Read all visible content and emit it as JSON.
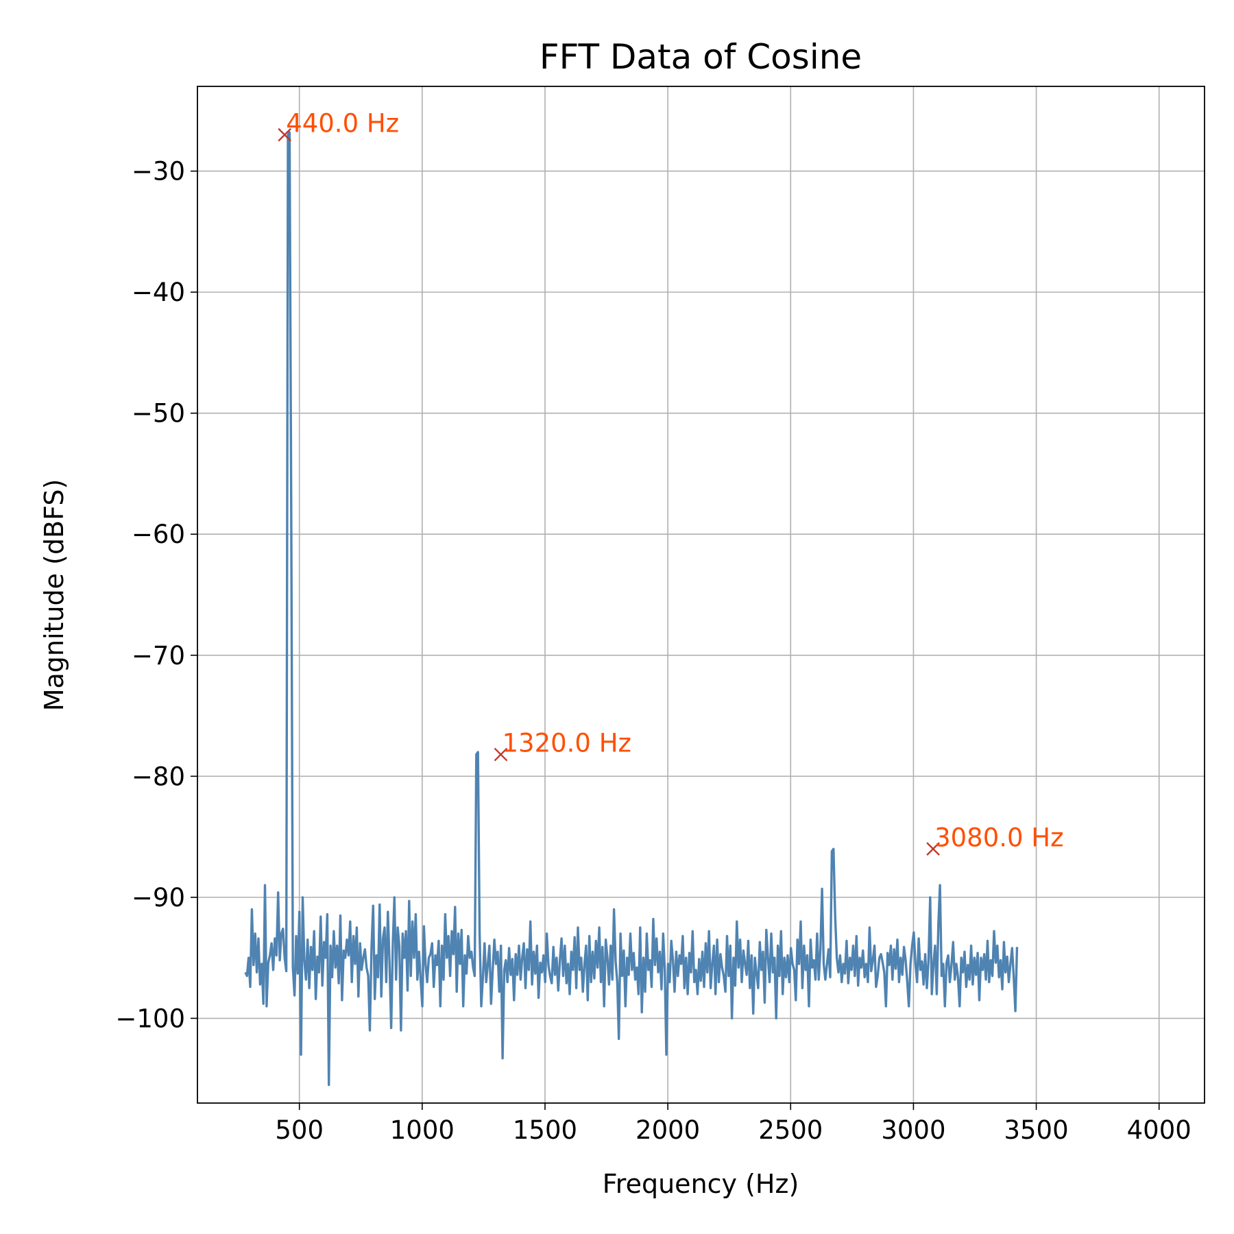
{
  "chart_data": {
    "type": "line",
    "title": "FFT Data of Cosine",
    "xlabel": "Frequency (Hz)",
    "ylabel": "Magnitude (dBFS)",
    "xlim": [
      85,
      4185
    ],
    "ylim": [
      -107,
      -23
    ],
    "xticks": [
      500,
      1000,
      1500,
      2000,
      2500,
      3000,
      3500,
      4000
    ],
    "xtick_labels": [
      "500",
      "1000",
      "1500",
      "2000",
      "2500",
      "3000",
      "3500",
      "4000"
    ],
    "yticks": [
      -100,
      -90,
      -80,
      -70,
      -60,
      -50,
      -40,
      -30
    ],
    "ytick_labels": [
      "−100",
      "−90",
      "−80",
      "−70",
      "−60",
      "−50",
      "−40",
      "−30"
    ],
    "grid": true,
    "colors": {
      "line": "#4f83b1",
      "marker": "#c0392b",
      "annotation": "#ff4f00"
    },
    "series": [
      {
        "x_start": 280,
        "x_step": 6.67,
        "values_note_free": true,
        "values": [
          -96.2,
          -96.5,
          -95.0,
          -97.4,
          -91.0,
          -95.6,
          -93.0,
          -96.2,
          -93.4,
          -97.2,
          -95.5,
          -98.8,
          -89.0,
          -99.0,
          -95.4,
          -94.8,
          -93.8,
          -96.0,
          -93.4,
          -94.8,
          -89.6,
          -95.2,
          -93.0,
          -92.6,
          -95.0,
          -96.1,
          -27.0,
          -26.8,
          -58.0,
          -95.8,
          -98.1,
          -93.2,
          -96.3,
          -91.2,
          -103.0,
          -90.0,
          -95.2,
          -96.8,
          -93.5,
          -97.5,
          -94.1,
          -96.0,
          -92.8,
          -98.4,
          -94.9,
          -96.2,
          -91.6,
          -97.3,
          -93.7,
          -95.0,
          -91.4,
          -105.5,
          -94.0,
          -96.6,
          -92.8,
          -95.8,
          -94.0,
          -97.1,
          -91.5,
          -98.5,
          -94.4,
          -95.0,
          -93.5,
          -94.8,
          -92.0,
          -97.0,
          -93.2,
          -95.5,
          -92.5,
          -98.2,
          -93.8,
          -96.0,
          -95.0,
          -94.3,
          -95.8,
          -96.5,
          -101.0,
          -94.2,
          -90.7,
          -98.4,
          -94.8,
          -96.6,
          -90.6,
          -98.2,
          -93.4,
          -92.5,
          -97.0,
          -91.2,
          -95.4,
          -100.8,
          -93.8,
          -90.0,
          -96.8,
          -92.5,
          -94.0,
          -101.0,
          -93.0,
          -95.0,
          -92.8,
          -97.7,
          -90.3,
          -96.5,
          -92.0,
          -95.0,
          -91.4,
          -96.8,
          -94.5,
          -96.8,
          -99.0,
          -92.4,
          -95.5,
          -97.0,
          -95.0,
          -94.7,
          -93.8,
          -97.4,
          -94.8,
          -95.6,
          -93.6,
          -99.0,
          -94.0,
          -96.8,
          -91.4,
          -95.0,
          -93.2,
          -96.5,
          -92.8,
          -94.7,
          -90.8,
          -97.8,
          -93.0,
          -95.5,
          -92.7,
          -99.0,
          -94.8,
          -96.3,
          -93.2,
          -95.0,
          -94.5,
          -95.8,
          -96.5,
          -78.2,
          -78.0,
          -93.0,
          -99.0,
          -96.6,
          -93.8,
          -97.0,
          -95.5,
          -94.0,
          -98.8,
          -96.0,
          -93.5,
          -95.5,
          -94.5,
          -97.8,
          -94.0,
          -103.3,
          -96.0,
          -95.2,
          -97.0,
          -94.2,
          -96.4,
          -95.1,
          -98.5,
          -94.7,
          -96.4,
          -94.0,
          -96.8,
          -95.0,
          -93.8,
          -97.5,
          -94.3,
          -96.0,
          -92.0,
          -97.2,
          -94.5,
          -96.3,
          -94.0,
          -98.3,
          -95.4,
          -96.2,
          -94.8,
          -97.0,
          -93.0,
          -95.6,
          -96.5,
          -97.1,
          -94.1,
          -96.4,
          -95.0,
          -97.7,
          -95.2,
          -93.4,
          -96.5,
          -94.0,
          -97.1,
          -95.5,
          -98.0,
          -94.5,
          -96.0,
          -93.3,
          -97.5,
          -92.5,
          -96.0,
          -95.0,
          -97.8,
          -95.5,
          -94.0,
          -98.5,
          -93.2,
          -97.0,
          -94.5,
          -96.7,
          -93.6,
          -95.8,
          -92.5,
          -97.0,
          -94.1,
          -99.0,
          -93.5,
          -95.0,
          -97.2,
          -94.0,
          -96.8,
          -91.0,
          -95.3,
          -97.0,
          -101.7,
          -93.0,
          -96.5,
          -94.4,
          -99.0,
          -95.0,
          -96.4,
          -93.0,
          -96.0,
          -94.6,
          -96.8,
          -95.8,
          -98.0,
          -92.5,
          -99.5,
          -95.0,
          -97.8,
          -93.0,
          -96.0,
          -95.2,
          -97.4,
          -91.8,
          -95.6,
          -93.4,
          -96.2,
          -94.5,
          -97.6,
          -93.0,
          -96.0,
          -103.0,
          -95.5,
          -97.0,
          -93.6,
          -95.2,
          -97.8,
          -94.5,
          -96.5,
          -94.8,
          -95.5,
          -93.2,
          -97.5,
          -95.0,
          -98.0,
          -94.6,
          -96.2,
          -92.8,
          -97.0,
          -96.0,
          -98.0,
          -95.1,
          -96.9,
          -94.5,
          -97.4,
          -93.8,
          -96.2,
          -92.8,
          -97.5,
          -95.5,
          -94.0,
          -98.0,
          -93.5,
          -97.0,
          -94.7,
          -95.8,
          -96.5,
          -97.8,
          -93.2,
          -96.5,
          -94.0,
          -100.0,
          -95.0,
          -97.3,
          -92.0,
          -95.8,
          -93.5,
          -97.0,
          -94.4,
          -95.5,
          -96.4,
          -93.6,
          -97.5,
          -94.8,
          -99.6,
          -95.0,
          -96.3,
          -97.5,
          -93.7,
          -96.0,
          -94.5,
          -98.7,
          -92.7,
          -95.0,
          -97.0,
          -93.0,
          -96.2,
          -95.0,
          -100.0,
          -94.0,
          -96.5,
          -92.8,
          -98.0,
          -95.0,
          -96.6,
          -94.8,
          -97.0,
          -94.2,
          -95.5,
          -96.0,
          -98.5,
          -93.5,
          -95.5,
          -92.0,
          -97.5,
          -94.0,
          -96.0,
          -94.8,
          -99.0,
          -93.5,
          -95.8,
          -95.2,
          -96.8,
          -93.0,
          -96.8,
          -94.3,
          -89.3,
          -95.5,
          -96.8,
          -95.5,
          -94.3,
          -96.6,
          -86.2,
          -86.0,
          -91.5,
          -95.0,
          -96.2,
          -94.8,
          -97.0,
          -95.5,
          -96.3,
          -93.6,
          -97.1,
          -95.0,
          -96.0,
          -94.0,
          -96.5,
          -93.2,
          -97.3,
          -95.0,
          -95.8,
          -94.4,
          -96.6,
          -95.5,
          -97.0,
          -92.5,
          -96.1,
          -95.2,
          -94.0,
          -97.4,
          -96.5,
          -95.0,
          -94.7,
          -95.4,
          -96.2,
          -99.0,
          -94.6,
          -95.6,
          -94.0,
          -96.8,
          -94.3,
          -95.9,
          -93.5,
          -97.0,
          -95.0,
          -96.4,
          -94.1,
          -95.2,
          -97.0,
          -99.0,
          -95.5,
          -94.0,
          -92.9,
          -95.5,
          -97.0,
          -93.4,
          -96.0,
          -95.3,
          -97.2,
          -94.7,
          -97.5,
          -95.2,
          -90.0,
          -98.0,
          -95.5,
          -94.0,
          -98.0,
          -92.2,
          -89.0,
          -96.5,
          -95.5,
          -99.0,
          -95.4,
          -94.8,
          -97.0,
          -95.6,
          -93.7,
          -96.8,
          -95.5,
          -96.6,
          -99.0,
          -95.0,
          -96.2,
          -94.5,
          -97.4,
          -95.6,
          -96.8,
          -94.0,
          -97.2,
          -95.0,
          -96.4,
          -94.6,
          -98.5,
          -95.0,
          -96.0,
          -94.7,
          -96.8,
          -93.6,
          -97.0,
          -95.2,
          -96.5,
          -92.8,
          -95.4,
          -94.0,
          -96.6,
          -95.2,
          -97.6,
          -93.7,
          -96.2,
          -94.9,
          -97.0,
          -95.5,
          -94.2,
          -96.6,
          -99.4,
          -94.1
        ]
      }
    ],
    "peaks": [
      {
        "x": 440.0,
        "y": -27.0,
        "label": "440.0 Hz"
      },
      {
        "x": 1320.0,
        "y": -78.2,
        "label": "1320.0 Hz"
      },
      {
        "x": 3080.0,
        "y": -86.0,
        "label": "3080.0 Hz"
      }
    ]
  }
}
